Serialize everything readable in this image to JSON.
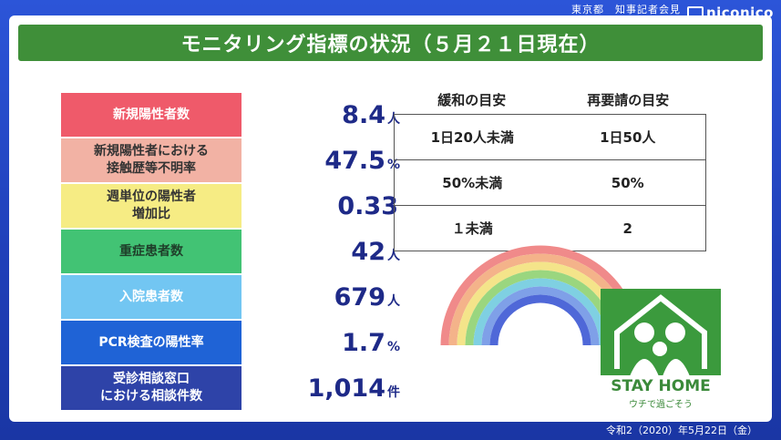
{
  "caption": "東京都　知事記者会見",
  "logo": "niconico",
  "title": "モニタリング指標の状況（５月２１日現在）",
  "indicators": [
    {
      "label": "新規陽性者数",
      "value": "8.4",
      "unit": "人",
      "color": "#ef5a6a",
      "text_color": "#ffffff"
    },
    {
      "label": "新規陽性者における\n接触歴等不明率",
      "value": "47.5",
      "unit": "%",
      "color": "#f2b2a4",
      "text_color": "#333333"
    },
    {
      "label": "週単位の陽性者\n増加比",
      "value": "0.33",
      "unit": "",
      "color": "#f6ec84",
      "text_color": "#333333"
    },
    {
      "label": "重症患者数",
      "value": "42",
      "unit": "人",
      "color": "#42c374",
      "text_color": "#1f3f2a"
    },
    {
      "label": "入院患者数",
      "value": "679",
      "unit": "人",
      "color": "#72c6f2",
      "text_color": "#ffffff"
    },
    {
      "label": "PCR検査の陽性率",
      "value": "1.7",
      "unit": "%",
      "color": "#1f63d6",
      "text_color": "#ffffff"
    },
    {
      "label": "受診相談窓口\nにおける相談件数",
      "value": "1,014",
      "unit": "件",
      "color": "#2e43a8",
      "text_color": "#ffffff"
    }
  ],
  "guide": {
    "headers": [
      "緩和の目安",
      "再要請の目安"
    ],
    "rows": [
      [
        "1日20人未満",
        "1日50人"
      ],
      [
        "50%未満",
        "50%"
      ],
      [
        "１未満",
        "2"
      ]
    ]
  },
  "stay_home": {
    "title": "STAY HOME",
    "subtitle": "ウチで過ごそう"
  },
  "date": "令和2（2020）年5月22日（金）"
}
